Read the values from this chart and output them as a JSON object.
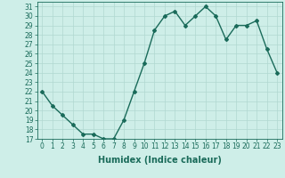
{
  "x": [
    0,
    1,
    2,
    3,
    4,
    5,
    6,
    7,
    8,
    9,
    10,
    11,
    12,
    13,
    14,
    15,
    16,
    17,
    18,
    19,
    20,
    21,
    22,
    23
  ],
  "y": [
    22,
    20.5,
    19.5,
    18.5,
    17.5,
    17.5,
    17,
    17,
    19,
    22,
    25,
    28.5,
    30,
    30.5,
    29,
    30,
    31,
    30,
    27.5,
    29,
    29,
    29.5,
    26.5,
    24
  ],
  "line_color": "#1a6b5a",
  "marker": "D",
  "marker_size": 2,
  "bg_color": "#ceeee8",
  "grid_color": "#b0d8d0",
  "xlabel": "Humidex (Indice chaleur)",
  "xlim": [
    -0.5,
    23.5
  ],
  "ylim": [
    17,
    31.5
  ],
  "yticks": [
    17,
    18,
    19,
    20,
    21,
    22,
    23,
    24,
    25,
    26,
    27,
    28,
    29,
    30,
    31
  ],
  "xticks": [
    0,
    1,
    2,
    3,
    4,
    5,
    6,
    7,
    8,
    9,
    10,
    11,
    12,
    13,
    14,
    15,
    16,
    17,
    18,
    19,
    20,
    21,
    22,
    23
  ],
  "tick_fontsize": 5.5,
  "xlabel_fontsize": 7,
  "line_width": 1.0
}
